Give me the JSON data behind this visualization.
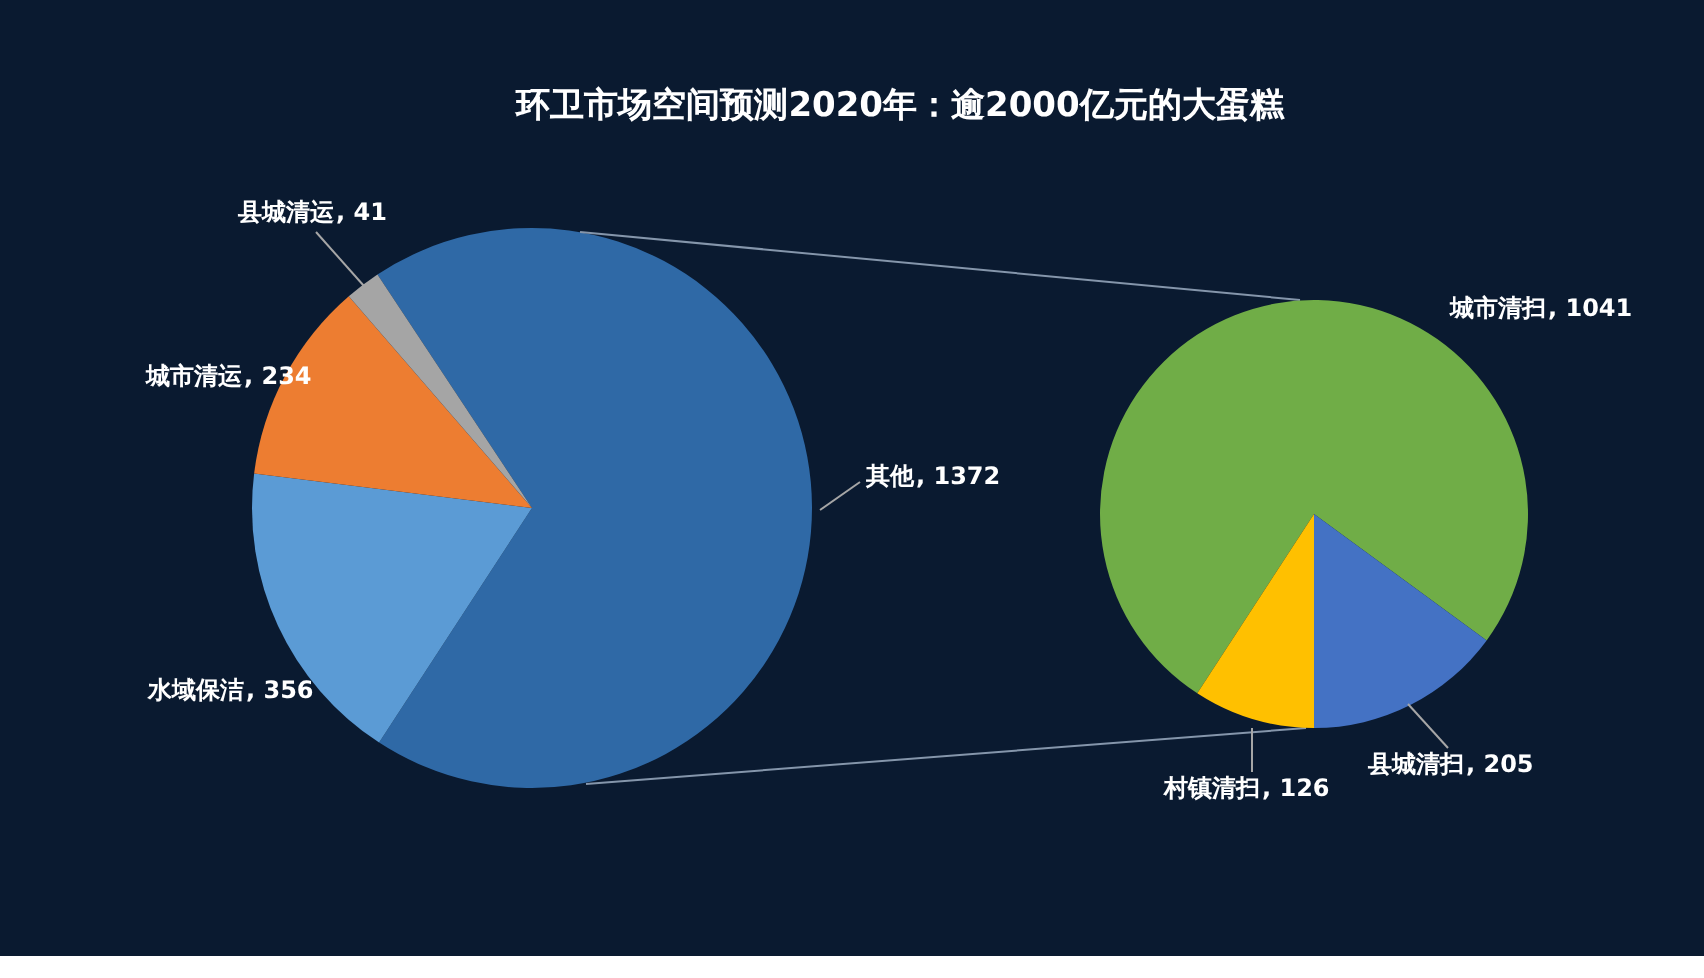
{
  "chart_data": [
    {
      "type": "pie",
      "title": "环卫市场空间预测2020年：逾2000亿元的大蛋糕",
      "categories": [
        "其他",
        "水域保洁",
        "城市清运",
        "县城清运"
      ],
      "values": [
        1372,
        356,
        234,
        41
      ],
      "colors": [
        "#2f69a6",
        "#5b9bd5",
        "#ed7d31",
        "#a5a5a5"
      ],
      "value_labels": [
        ", 1372",
        ", 356",
        ", 234",
        ", 41"
      ],
      "legend": false
    },
    {
      "type": "pie",
      "categories": [
        "城市清扫",
        "县城清扫",
        "村镇清扫"
      ],
      "values": [
        1041,
        205,
        126
      ],
      "colors": [
        "#70ad47",
        "#4472c4",
        "#ffc000"
      ],
      "value_labels": [
        ", 1041",
        ", 205",
        ", 126"
      ],
      "legend": false
    }
  ]
}
